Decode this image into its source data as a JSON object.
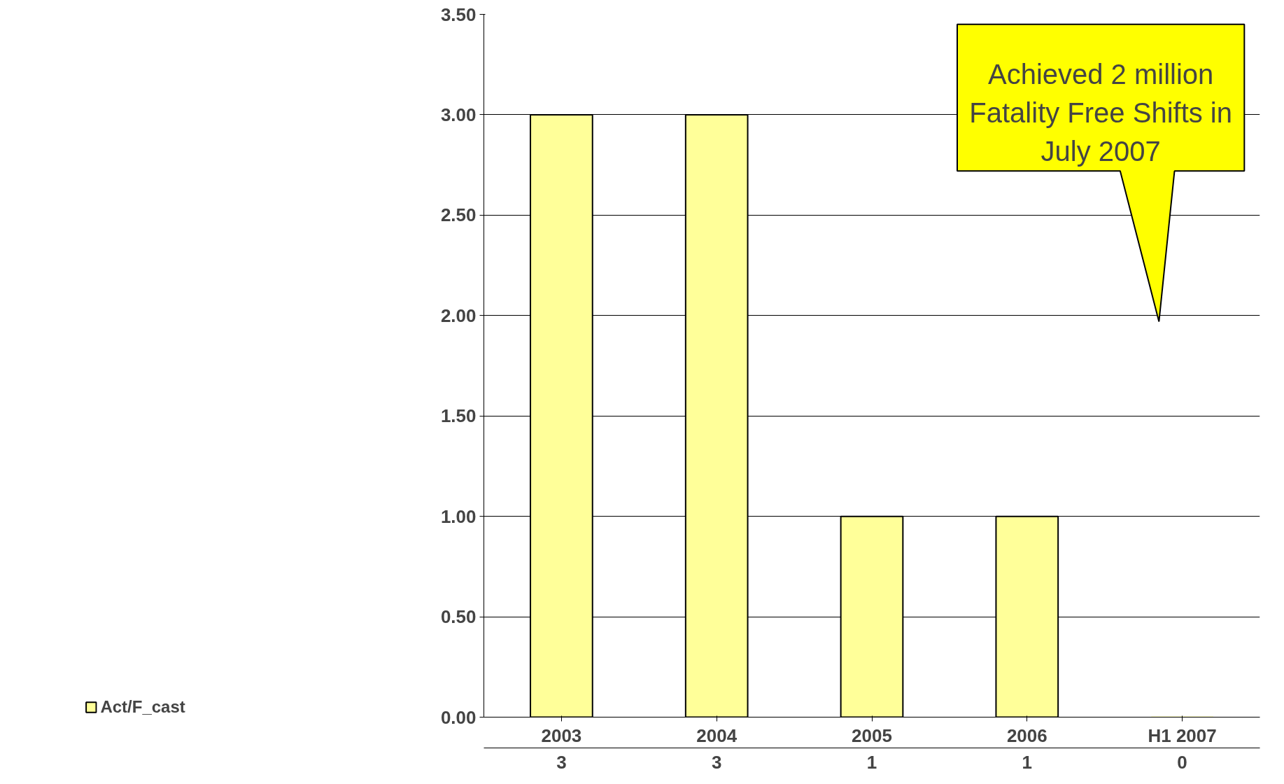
{
  "chart_data": {
    "type": "bar",
    "categories": [
      "2003",
      "2004",
      "2005",
      "2006",
      "H1 2007"
    ],
    "series": [
      {
        "name": "Act/F_cast",
        "color": "#ffff99",
        "values": [
          3,
          3,
          1,
          1,
          0
        ]
      }
    ],
    "ylim": [
      0,
      3.5
    ],
    "yticks": [
      {
        "value": 0,
        "label": "0.00"
      },
      {
        "value": 0.5,
        "label": "0.50"
      },
      {
        "value": 1,
        "label": "1.00"
      },
      {
        "value": 1.5,
        "label": "1.50"
      },
      {
        "value": 2,
        "label": "2.00"
      },
      {
        "value": 2.5,
        "label": "2.50"
      },
      {
        "value": 3,
        "label": "3.00"
      },
      {
        "value": 3.5,
        "label": "3.50"
      }
    ],
    "grid": "y",
    "legend": "bottom left",
    "data_labels": true,
    "annotations": [
      "Achieved 2 million Fatality Free Shifts in July 2007"
    ]
  }
}
